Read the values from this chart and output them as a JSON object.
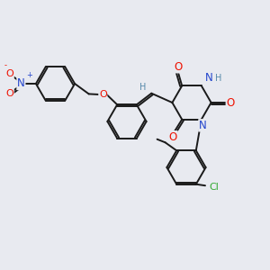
{
  "bg_color": "#e8eaf0",
  "figsize": [
    3.0,
    3.0
  ],
  "dpi": 100,
  "bond_color": "#1a1a1a",
  "bond_lw": 1.4,
  "atom_colors": {
    "O": "#ee1100",
    "N": "#2244cc",
    "Cl": "#33aa33",
    "H": "#5588aa",
    "Nplus": "#2244cc",
    "Ominus": "#ee1100"
  },
  "font_size": 7.0
}
